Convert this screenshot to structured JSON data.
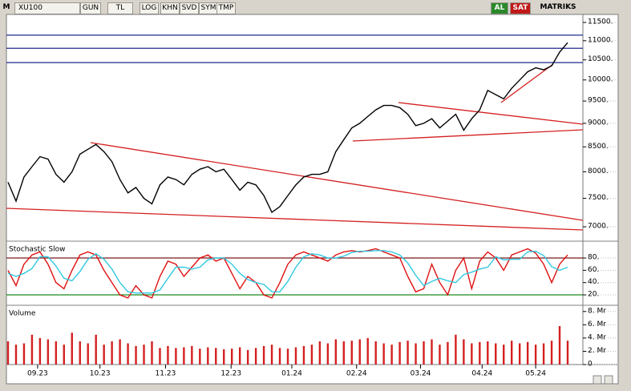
{
  "toolbar": {
    "menu": "M",
    "symbol": "XU100",
    "buttons": [
      "GUN",
      "TL",
      "LOG",
      "KHN",
      "SVD",
      "SYM",
      "TMP"
    ],
    "buy": "AL",
    "sell": "SAT",
    "brand": "MATRIKS"
  },
  "chart_data": [
    {
      "type": "line",
      "color": "#000000",
      "log": true,
      "ylim": [
        6772,
        11726
      ],
      "xlim": [
        0,
        70
      ],
      "yticks": [
        {
          "value": 7000,
          "label": "7000."
        },
        {
          "value": 7500,
          "label": "7500."
        },
        {
          "value": 8000,
          "label": "8000."
        },
        {
          "value": 8500,
          "label": "8500."
        },
        {
          "value": 9000,
          "label": "9000."
        },
        {
          "value": 9500,
          "label": "9500."
        },
        {
          "value": 10000,
          "label": "10000."
        },
        {
          "value": 10500,
          "label": "10500."
        },
        {
          "value": 11000,
          "label": "11000."
        },
        {
          "value": 11500,
          "label": "11500."
        }
      ],
      "hlines": [
        11150,
        10800,
        10430
      ],
      "hline_color": "#1f2a8a",
      "values": [
        7800,
        7450,
        7900,
        8100,
        8300,
        8250,
        7950,
        7800,
        8000,
        8350,
        8450,
        8550,
        8400,
        8200,
        7850,
        7600,
        7700,
        7500,
        7400,
        7750,
        7900,
        7850,
        7750,
        7950,
        8050,
        8100,
        8000,
        8050,
        7850,
        7650,
        7800,
        7750,
        7550,
        7250,
        7350,
        7550,
        7750,
        7900,
        7950,
        7950,
        8000,
        8400,
        8650,
        8900,
        9000,
        9150,
        9300,
        9400,
        9400,
        9350,
        9200,
        8950,
        9000,
        9100,
        8900,
        9050,
        9200,
        8850,
        9100,
        9300,
        9750,
        9650,
        9550,
        9800,
        10000,
        10200,
        10300,
        10250,
        10350,
        10700,
        10950
      ]
    },
    {
      "type": "line",
      "title": "Stochastic Slow",
      "ylim": [
        4.4,
        104.8
      ],
      "xlim": [
        0,
        70
      ],
      "yticks": [
        {
          "value": 20,
          "label": "20."
        },
        {
          "value": 40,
          "label": "40."
        },
        {
          "value": 60,
          "label": "60."
        },
        {
          "value": 80,
          "label": "80."
        }
      ],
      "levels": [
        {
          "value": 80,
          "color": "#7a1a1a"
        },
        {
          "value": 20,
          "color": "#1a8a1a"
        }
      ],
      "series": [
        {
          "color": "#e01010",
          "values": [
            60,
            35,
            70,
            85,
            90,
            70,
            40,
            30,
            60,
            85,
            90,
            85,
            60,
            40,
            20,
            15,
            35,
            20,
            15,
            50,
            75,
            70,
            50,
            65,
            80,
            85,
            75,
            80,
            55,
            30,
            50,
            40,
            20,
            15,
            40,
            70,
            85,
            90,
            85,
            80,
            75,
            85,
            90,
            92,
            90,
            92,
            95,
            90,
            85,
            80,
            50,
            25,
            30,
            70,
            40,
            20,
            60,
            80,
            30,
            75,
            90,
            80,
            60,
            85,
            90,
            95,
            88,
            70,
            40,
            70,
            85
          ]
        },
        {
          "color": "#30c8e0",
          "values": [
            55,
            50,
            55,
            63,
            82,
            82,
            67,
            47,
            43,
            58,
            78,
            87,
            78,
            62,
            40,
            25,
            23,
            23,
            23,
            28,
            47,
            65,
            65,
            62,
            65,
            77,
            80,
            80,
            70,
            55,
            45,
            40,
            37,
            25,
            25,
            42,
            65,
            82,
            87,
            85,
            80,
            80,
            83,
            89,
            91,
            91,
            92,
            92,
            90,
            85,
            72,
            52,
            35,
            42,
            47,
            43,
            40,
            53,
            57,
            62,
            65,
            82,
            77,
            78,
            78,
            90,
            91,
            84,
            66,
            60,
            65
          ]
        }
      ]
    },
    {
      "type": "bar",
      "title": "Volume",
      "color": "#d42020",
      "ylim": [
        0,
        8.7
      ],
      "xlim": [
        0,
        70
      ],
      "yticks": [
        0,
        {
          "value": 2,
          "label": "2. Mr"
        },
        {
          "value": 4,
          "label": "4. Mr"
        },
        {
          "value": 6,
          "label": "6. Mr"
        },
        {
          "value": 8,
          "label": "8. Mr"
        }
      ],
      "xticks": [
        {
          "value": 3.7,
          "label": "09.23"
        },
        {
          "value": 11.5,
          "label": "10.23"
        },
        {
          "value": 19.7,
          "label": "11.23"
        },
        {
          "value": 27.9,
          "label": "12.23"
        },
        {
          "value": 35.5,
          "label": "01.24"
        },
        {
          "value": 43.6,
          "label": "02.24"
        },
        {
          "value": 51.6,
          "label": "03.24"
        },
        {
          "value": 59.3,
          "label": "04.24"
        },
        {
          "value": 66.0,
          "label": "05.24"
        }
      ],
      "values": [
        3.5,
        3.0,
        3.2,
        4.5,
        4.0,
        3.8,
        3.5,
        3.0,
        4.8,
        3.5,
        3.2,
        4.5,
        3.0,
        3.5,
        3.8,
        3.2,
        2.8,
        3.0,
        3.5,
        2.5,
        2.8,
        2.5,
        2.6,
        2.8,
        2.4,
        2.6,
        2.5,
        2.3,
        2.4,
        2.6,
        2.2,
        2.5,
        2.8,
        3.0,
        2.5,
        2.4,
        2.6,
        2.8,
        3.0,
        3.5,
        3.2,
        3.8,
        3.5,
        3.6,
        3.8,
        4.0,
        3.5,
        3.2,
        3.0,
        3.4,
        3.6,
        3.2,
        3.5,
        3.8,
        3.0,
        3.4,
        4.5,
        3.8,
        3.2,
        3.4,
        3.5,
        3.2,
        3.0,
        3.6,
        3.2,
        3.4,
        3.0,
        3.2,
        3.6,
        5.8,
        3.6
      ]
    }
  ]
}
